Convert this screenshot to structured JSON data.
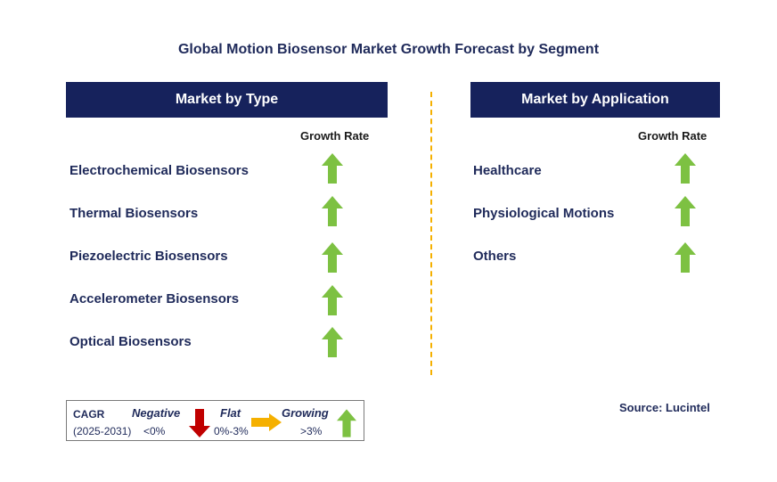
{
  "title": "Global Motion Biosensor Market Growth Forecast by Segment",
  "left_panel": {
    "header": "Market by Type",
    "growth_label": "Growth Rate",
    "rows": [
      {
        "label": "Electrochemical Biosensors",
        "trend": "growing"
      },
      {
        "label": "Thermal Biosensors",
        "trend": "growing"
      },
      {
        "label": "Piezoelectric Biosensors",
        "trend": "growing"
      },
      {
        "label": "Accelerometer Biosensors",
        "trend": "growing"
      },
      {
        "label": "Optical Biosensors",
        "trend": "growing"
      }
    ]
  },
  "right_panel": {
    "header": "Market by Application",
    "growth_label": "Growth Rate",
    "rows": [
      {
        "label": "Healthcare",
        "trend": "growing"
      },
      {
        "label": "Physiological Motions",
        "trend": "growing"
      },
      {
        "label": "Others",
        "trend": "growing"
      }
    ]
  },
  "legend": {
    "cagr_label": "CAGR",
    "period": "(2025-2031)",
    "negative_label": "Negative",
    "negative_value": "<0%",
    "flat_label": "Flat",
    "flat_value": "0%-3%",
    "growing_label": "Growing",
    "growing_value": ">3%"
  },
  "source": "Source: Lucintel",
  "colors": {
    "header_bg": "#16225c",
    "arrow_up": "#7dc142",
    "arrow_down": "#c00000",
    "arrow_flat": "#f5b000",
    "divider": "#f5b000"
  }
}
